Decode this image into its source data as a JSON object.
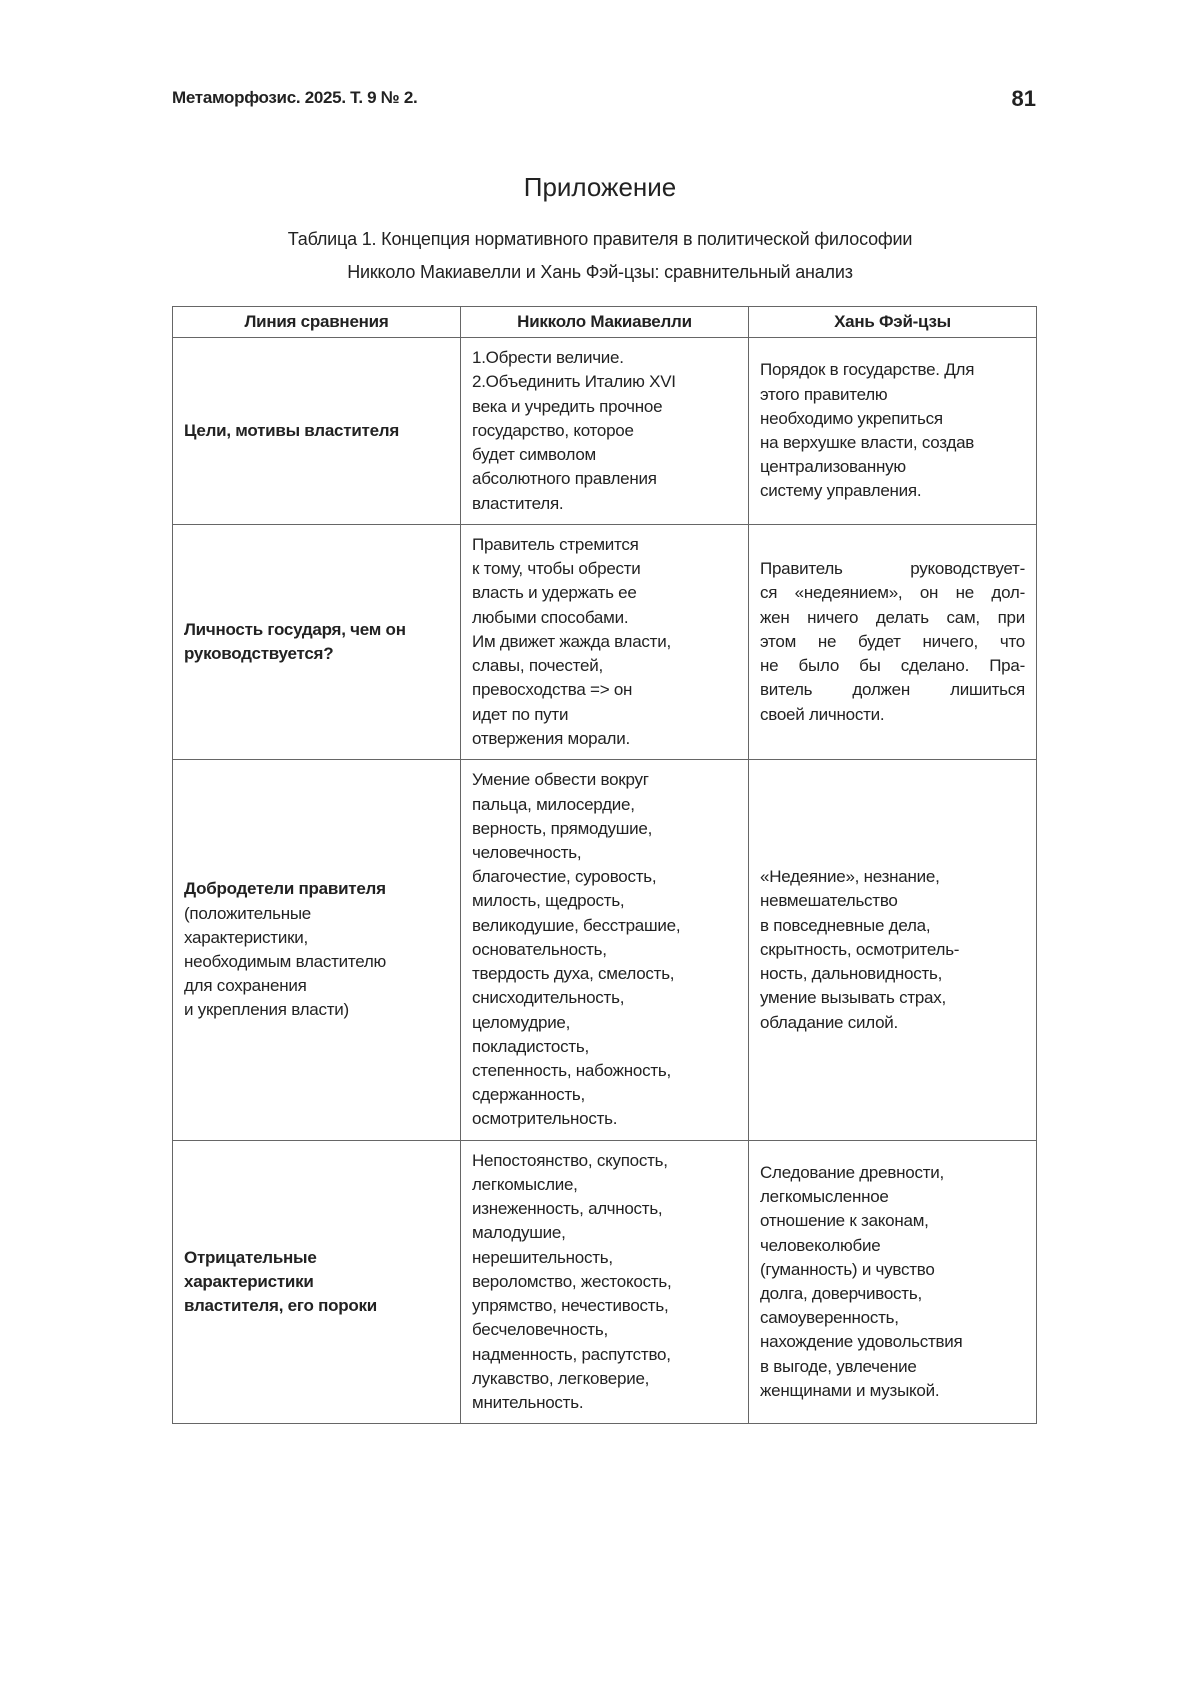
{
  "header": {
    "journal": "Метаморфозис. 2025. Т. 9 № 2.",
    "page_number": "81"
  },
  "title": "Приложение",
  "caption": [
    "Таблица 1. Концепция нормативного правителя в политической философии",
    "Никколо Макиавелли и Хань Фэй-цзы: сравнительный анализ"
  ],
  "table": {
    "headers": [
      "Линия сравнения",
      "Никколо Макиавелли",
      "Хань Фэй-цзы"
    ],
    "rows": [
      {
        "label_bold": [
          "Цели, мотивы властителя"
        ],
        "label_normal": [],
        "machiavelli": [
          "1.Обрести величие.",
          "2.Объединить Италию XVI",
          "века и учредить прочное",
          "государство, которое",
          "будет символом",
          "абсолютного правления",
          "властителя."
        ],
        "hanfeizi": [
          "Порядок в государстве. Для",
          "этого правителю",
          "необходимо укрепиться",
          "на верхушке власти, создав",
          "централизованную",
          "систему управления."
        ],
        "hanfeizi_justified": false
      },
      {
        "label_bold": [
          "Личность государя, чем он",
          "руководствуется?"
        ],
        "label_normal": [],
        "machiavelli": [
          "Правитель стремится",
          "к тому, чтобы обрести",
          "власть и удержать ее",
          "любыми способами.",
          "Им движет жажда власти,",
          "славы, почестей,",
          "превосходства => он",
          "идет по пути",
          "отвержения морали."
        ],
        "hanfeizi": [
          "Правитель руководствует-",
          "ся «недеянием», он не дол-",
          "жен ничего делать сам, при",
          "этом не будет ничего, что",
          "не было бы сделано. Пра-",
          "витель должен лишиться",
          "своей личности."
        ],
        "hanfeizi_justified": true
      },
      {
        "label_bold": [
          "Добродетели правителя"
        ],
        "label_normal": [
          "(положительные",
          "характеристики,",
          "необходимым властителю",
          "для сохранения",
          "и укрепления власти)"
        ],
        "machiavelli": [
          "Умение обвести вокруг",
          "пальца, милосердие,",
          "верность, прямодушие,",
          "человечность,",
          "благочестие, суровость,",
          "милость, щедрость,",
          "великодушие, бесстрашие,",
          "основательность,",
          "твердость духа, смелость,",
          "снисходительность,",
          "целомудрие,",
          "покладистость,",
          "степенность, набожность,",
          "сдержанность,",
          "осмотрительность."
        ],
        "hanfeizi": [
          "«Недеяние», незнание,",
          "невмешательство",
          "в повседневные дела,",
          "скрытность, осмотритель-",
          "ность, дальновидность,",
          "умение вызывать страх,",
          "обладание силой."
        ],
        "hanfeizi_justified": false
      },
      {
        "label_bold": [
          "Отрицательные",
          "характеристики",
          "властителя, его пороки"
        ],
        "label_normal": [],
        "machiavelli": [
          "Непостоянство, скупость,",
          "легкомыслие,",
          "изнеженность, алчность,",
          "малодушие,",
          "нерешительность,",
          "вероломство, жестокость,",
          "упрямство, нечестивость,",
          "бесчеловечность,",
          "надменность, распутство,",
          "лукавство, легковерие,",
          "мнительность."
        ],
        "hanfeizi": [
          "Следование древности,",
          "легкомысленное",
          "отношение к законам,",
          "человеколюбие",
          "(гуманность) и чувство",
          "долга, доверчивость,",
          "самоуверенность,",
          "нахождение удовольствия",
          "в выгоде, увлечение",
          "женщинами и музыкой."
        ],
        "hanfeizi_justified": false
      }
    ]
  }
}
